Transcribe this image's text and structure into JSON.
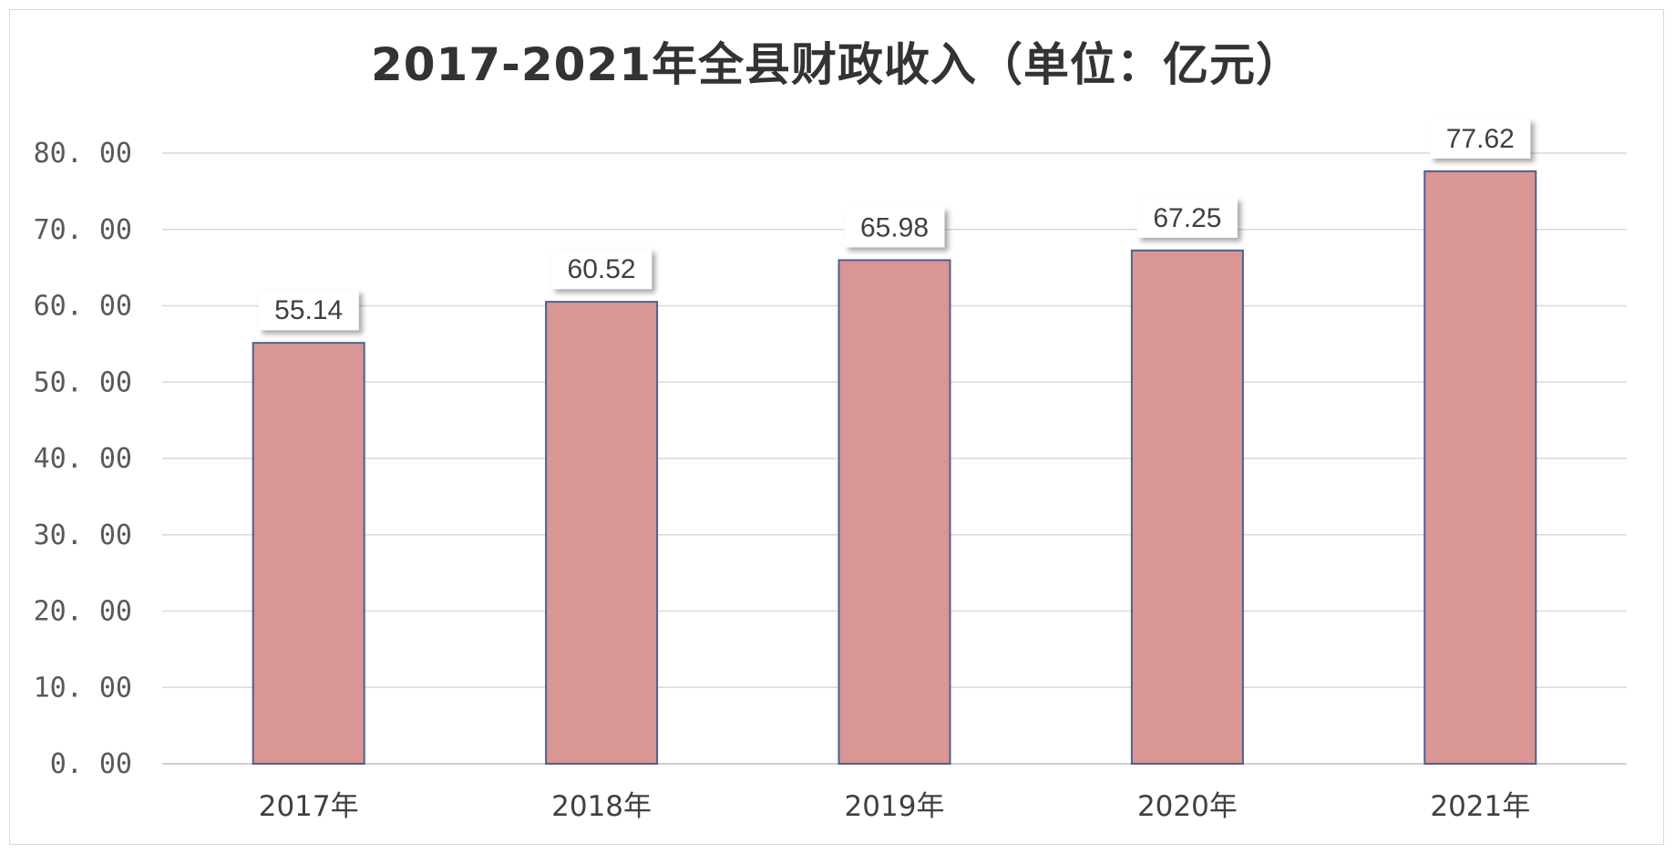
{
  "chart_data": {
    "type": "bar",
    "title": "2017-2021年全县财政收入（单位：亿元）",
    "categories": [
      "2017年",
      "2018年",
      "2019年",
      "2020年",
      "2021年"
    ],
    "values": [
      55.14,
      60.52,
      65.98,
      67.25,
      77.62
    ],
    "data_labels": [
      "55.14",
      "60.52",
      "65.98",
      "67.25",
      "77.62"
    ],
    "ylim": [
      0,
      80
    ],
    "yticks": [
      0,
      10,
      20,
      30,
      40,
      50,
      60,
      70,
      80
    ],
    "ytick_labels": [
      "0. 00",
      "10. 00",
      "20. 00",
      "30. 00",
      "40. 00",
      "50. 00",
      "60. 00",
      "70. 00",
      "80. 00"
    ],
    "xlabel": "",
    "ylabel": "",
    "grid": true,
    "legend": "none",
    "colors": {
      "bar_fill": "#d99694",
      "bar_stroke": "#4f5f8f",
      "grid": "#d9d9d9",
      "title": "#333333"
    }
  }
}
